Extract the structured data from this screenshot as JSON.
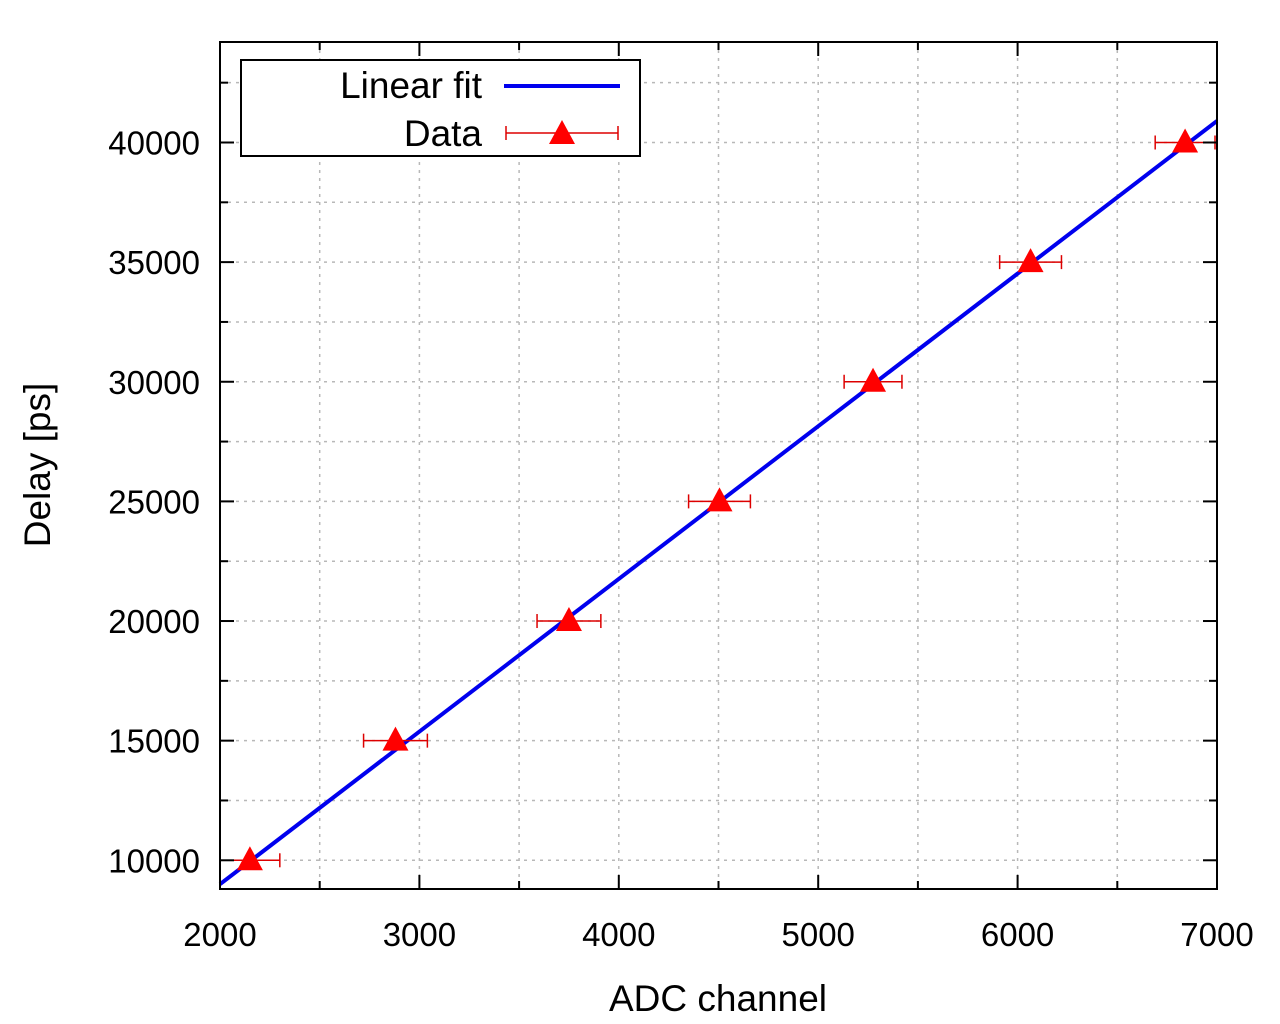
{
  "chart_data": {
    "type": "scatter",
    "title": "",
    "xlabel": "ADC channel",
    "ylabel": "Delay [ps]",
    "xlim": [
      2000,
      7000
    ],
    "ylim": [
      8800,
      44200
    ],
    "x_ticks": [
      2000,
      3000,
      4000,
      5000,
      6000,
      7000
    ],
    "y_ticks": [
      10000,
      15000,
      20000,
      25000,
      30000,
      35000,
      40000
    ],
    "grid": true,
    "legend_position": "top-left",
    "series": [
      {
        "name": "Linear fit",
        "kind": "line",
        "color": "#0000ee",
        "x": [
          2000,
          7000
        ],
        "y": [
          9000,
          40900
        ]
      },
      {
        "name": "Data",
        "kind": "scatter-errorbar",
        "color": "#ff0000",
        "marker": "triangle",
        "x": [
          2150,
          2880,
          3750,
          4505,
          5275,
          6065,
          6840
        ],
        "y": [
          10000,
          15000,
          20000,
          25000,
          30000,
          35000,
          40000
        ],
        "x_error": [
          150,
          160,
          160,
          155,
          145,
          155,
          150
        ]
      }
    ]
  }
}
